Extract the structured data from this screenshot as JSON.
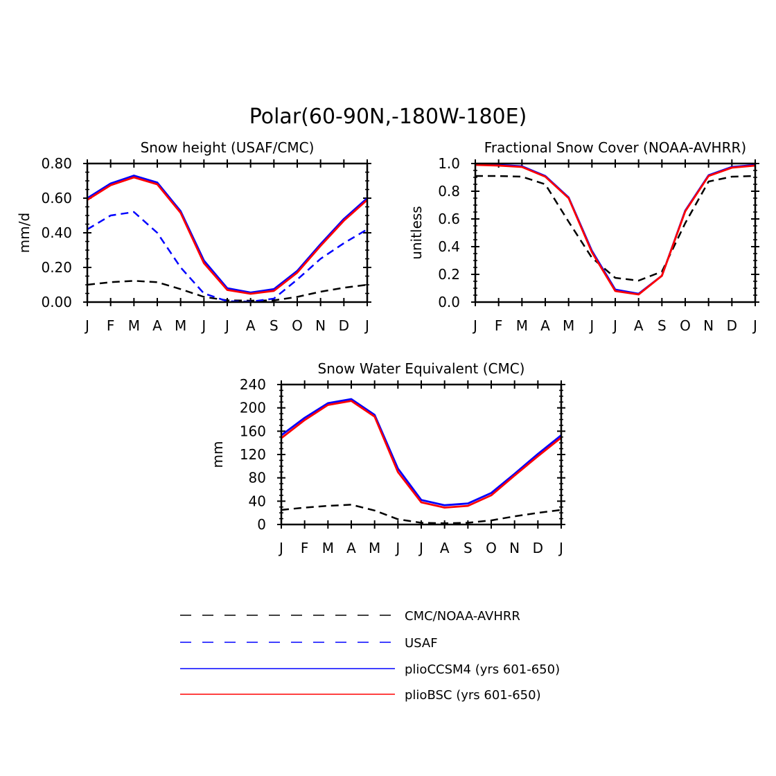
{
  "figure": {
    "title": "Polar(60-90N,-180W-180E)"
  },
  "legend": [
    {
      "label": "CMC/NOAA-AVHRR",
      "color": "#000000",
      "style": "dashed"
    },
    {
      "label": "USAF",
      "color": "#0000ff",
      "style": "dashed"
    },
    {
      "label": "plioCCSM4 (yrs 601-650)",
      "color": "#0000ff",
      "style": "solid"
    },
    {
      "label": "plioBSC (yrs 601-650)",
      "color": "#ff0000",
      "style": "solid"
    }
  ],
  "chart_data": [
    {
      "type": "line",
      "title": "Snow height (USAF/CMC)",
      "ylabel": "mm/d",
      "xlabel": "",
      "categories": [
        "J",
        "F",
        "M",
        "A",
        "M",
        "J",
        "J",
        "A",
        "S",
        "O",
        "N",
        "D",
        "J"
      ],
      "ylim": [
        0,
        0.8
      ],
      "yticks": [
        "0.00",
        "0.20",
        "0.40",
        "0.60",
        "0.80"
      ],
      "series": [
        {
          "name": "CMC/NOAA-AVHRR",
          "color": "#000000",
          "style": "dashed",
          "values": [
            0.1,
            0.115,
            0.123,
            0.115,
            0.075,
            0.03,
            0.01,
            0.008,
            0.01,
            0.03,
            0.06,
            0.083,
            0.1
          ]
        },
        {
          "name": "USAF",
          "color": "#0000ff",
          "style": "dashed",
          "values": [
            0.42,
            0.5,
            0.52,
            0.4,
            0.2,
            0.05,
            0.005,
            0.003,
            0.02,
            0.13,
            0.25,
            0.34,
            0.42
          ]
        },
        {
          "name": "plioCCSM4 (yrs 601-650)",
          "color": "#0000ff",
          "style": "solid",
          "values": [
            0.6,
            0.685,
            0.73,
            0.69,
            0.525,
            0.24,
            0.08,
            0.055,
            0.075,
            0.18,
            0.335,
            0.48,
            0.6
          ]
        },
        {
          "name": "plioBSC (yrs 601-650)",
          "color": "#ff0000",
          "style": "solid",
          "values": [
            0.59,
            0.675,
            0.72,
            0.68,
            0.515,
            0.225,
            0.07,
            0.048,
            0.065,
            0.17,
            0.325,
            0.47,
            0.59
          ]
        }
      ]
    },
    {
      "type": "line",
      "title": "Fractional Snow Cover (NOAA-AVHRR)",
      "ylabel": "unitless",
      "xlabel": "",
      "categories": [
        "J",
        "F",
        "M",
        "A",
        "M",
        "J",
        "J",
        "A",
        "S",
        "O",
        "N",
        "D",
        "J"
      ],
      "ylim": [
        0,
        1.0
      ],
      "yticks": [
        "0.0",
        "0.2",
        "0.4",
        "0.6",
        "0.8",
        "1.0"
      ],
      "series": [
        {
          "name": "CMC/NOAA-AVHRR",
          "color": "#000000",
          "style": "dashed",
          "values": [
            0.91,
            0.91,
            0.905,
            0.85,
            0.58,
            0.32,
            0.175,
            0.155,
            0.22,
            0.57,
            0.87,
            0.905,
            0.91
          ]
        },
        {
          "name": "plioCCSM4 (yrs 601-650)",
          "color": "#0000ff",
          "style": "solid",
          "values": [
            0.995,
            0.99,
            0.98,
            0.91,
            0.755,
            0.37,
            0.09,
            0.06,
            0.19,
            0.66,
            0.915,
            0.975,
            0.99
          ]
        },
        {
          "name": "plioBSC (yrs 601-650)",
          "color": "#ff0000",
          "style": "solid",
          "values": [
            0.99,
            0.985,
            0.975,
            0.905,
            0.75,
            0.36,
            0.08,
            0.055,
            0.19,
            0.655,
            0.91,
            0.97,
            0.985
          ]
        }
      ]
    },
    {
      "type": "line",
      "title": "Snow Water Equivalent (CMC)",
      "ylabel": "mm",
      "xlabel": "",
      "categories": [
        "J",
        "F",
        "M",
        "A",
        "M",
        "J",
        "J",
        "A",
        "S",
        "O",
        "N",
        "D",
        "J"
      ],
      "ylim": [
        0,
        240
      ],
      "yticks": [
        "0",
        "40",
        "80",
        "120",
        "160",
        "200",
        "240"
      ],
      "series": [
        {
          "name": "CMC/NOAA-AVHRR",
          "color": "#000000",
          "style": "dashed",
          "values": [
            25,
            29,
            32,
            34,
            24,
            9,
            3,
            2,
            3,
            7,
            14,
            20,
            25
          ]
        },
        {
          "name": "plioCCSM4 (yrs 601-650)",
          "color": "#0000ff",
          "style": "solid",
          "values": [
            153,
            183,
            208,
            215,
            188,
            96,
            42,
            33,
            36,
            54,
            87,
            121,
            153
          ]
        },
        {
          "name": "plioBSC (yrs 601-650)",
          "color": "#ff0000",
          "style": "solid",
          "values": [
            148,
            179,
            205,
            212,
            185,
            90,
            38,
            29,
            32,
            50,
            84,
            117,
            149
          ]
        }
      ]
    }
  ]
}
